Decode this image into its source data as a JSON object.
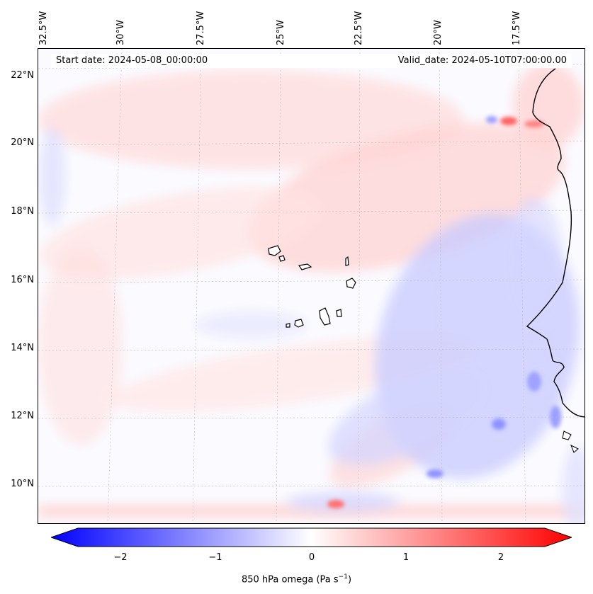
{
  "map": {
    "start_date": "Start date: 2024-05-08_00:00:00",
    "valid_date": "Valid_date: 2024-05-10T07:00:00.00",
    "lon_labels": [
      "32.5°W",
      "30°W",
      "27.5°W",
      "25°W",
      "22.5°W",
      "20°W",
      "17.5°W"
    ],
    "lat_labels": [
      "22°N",
      "20°N",
      "18°N",
      "16°N",
      "14°N",
      "12°N",
      "10°N"
    ],
    "colors": {
      "negative": "#0000ff",
      "zero": "#ffffff",
      "positive": "#ff0000",
      "coastline": "#000000"
    }
  },
  "colorbar": {
    "title": "850 hPa omega (Pa s",
    "title_exp": "−1",
    "title_close": ")",
    "ticks": [
      "−2",
      "−1",
      "0",
      "1",
      "2"
    ],
    "range": [
      -2.5,
      2.5
    ]
  }
}
